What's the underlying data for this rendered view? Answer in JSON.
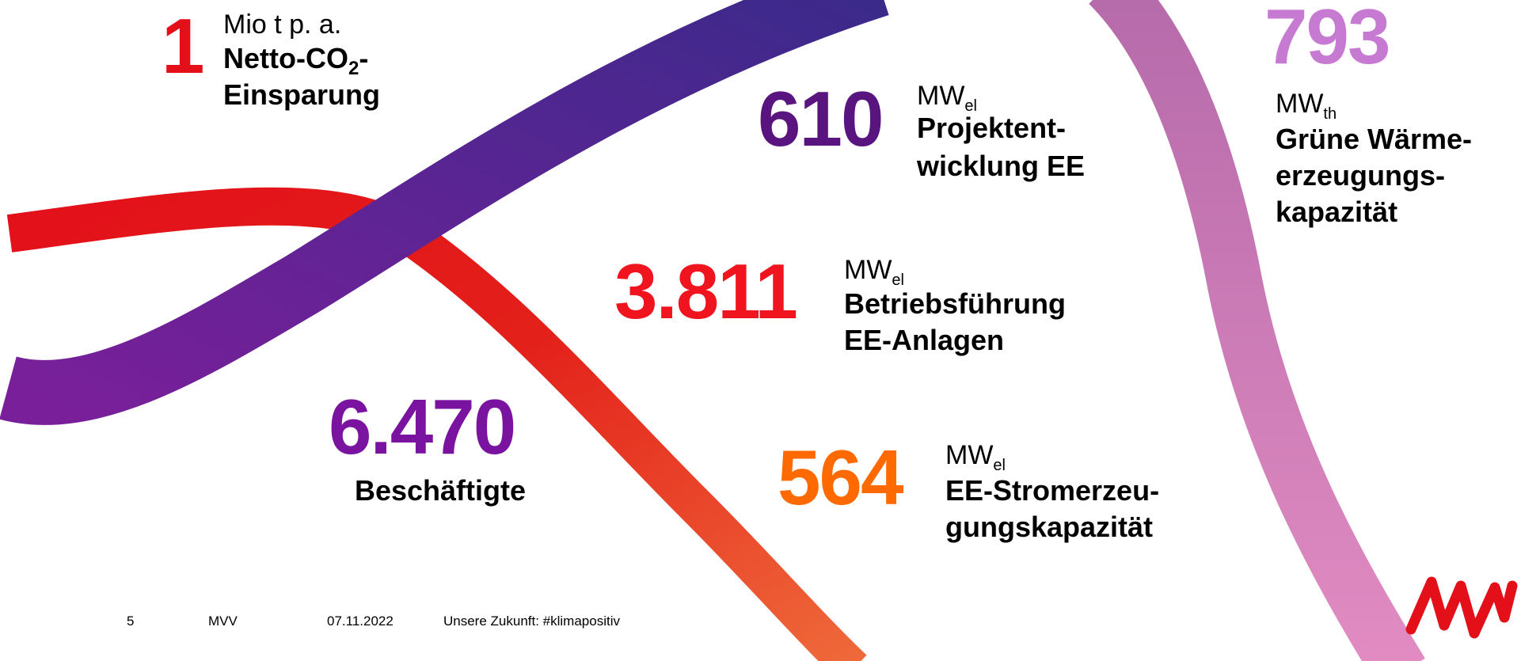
{
  "kpis": [
    {
      "number": "1",
      "unit": "Mio t p. a.",
      "label_lines": [
        {
          "text": "Netto-CO",
          "sub": "2",
          "tail": "-"
        },
        {
          "text": "Einsparung"
        }
      ]
    },
    {
      "number": "610",
      "unit": {
        "base": "MW",
        "sub": "el"
      },
      "label_lines": [
        {
          "text": "Projektent-"
        },
        {
          "text": "wicklung EE"
        }
      ]
    },
    {
      "number": "3.811",
      "unit": {
        "base": "MW",
        "sub": "el"
      },
      "label_lines": [
        {
          "text": "Betriebsführung"
        },
        {
          "text": "EE-Anlagen"
        }
      ]
    },
    {
      "number": "6.470",
      "label_lines": [
        {
          "text": "Beschäftigte"
        }
      ]
    },
    {
      "number": "564",
      "unit": {
        "base": "MW",
        "sub": "el"
      },
      "label_lines": [
        {
          "text": "EE-Stromerzeu-"
        },
        {
          "text": "gungskapazität"
        }
      ]
    },
    {
      "number": "793",
      "unit": {
        "base": "MW",
        "sub": "th"
      },
      "label_lines": [
        {
          "text": "Grüne Wärme-"
        },
        {
          "text": "erzeugungs-"
        },
        {
          "text": "kapazität"
        }
      ]
    }
  ],
  "footer": {
    "page": "5",
    "company": "MVV",
    "date": "07.11.2022",
    "title": "Unsere Zukunft: #klimapositiv"
  }
}
